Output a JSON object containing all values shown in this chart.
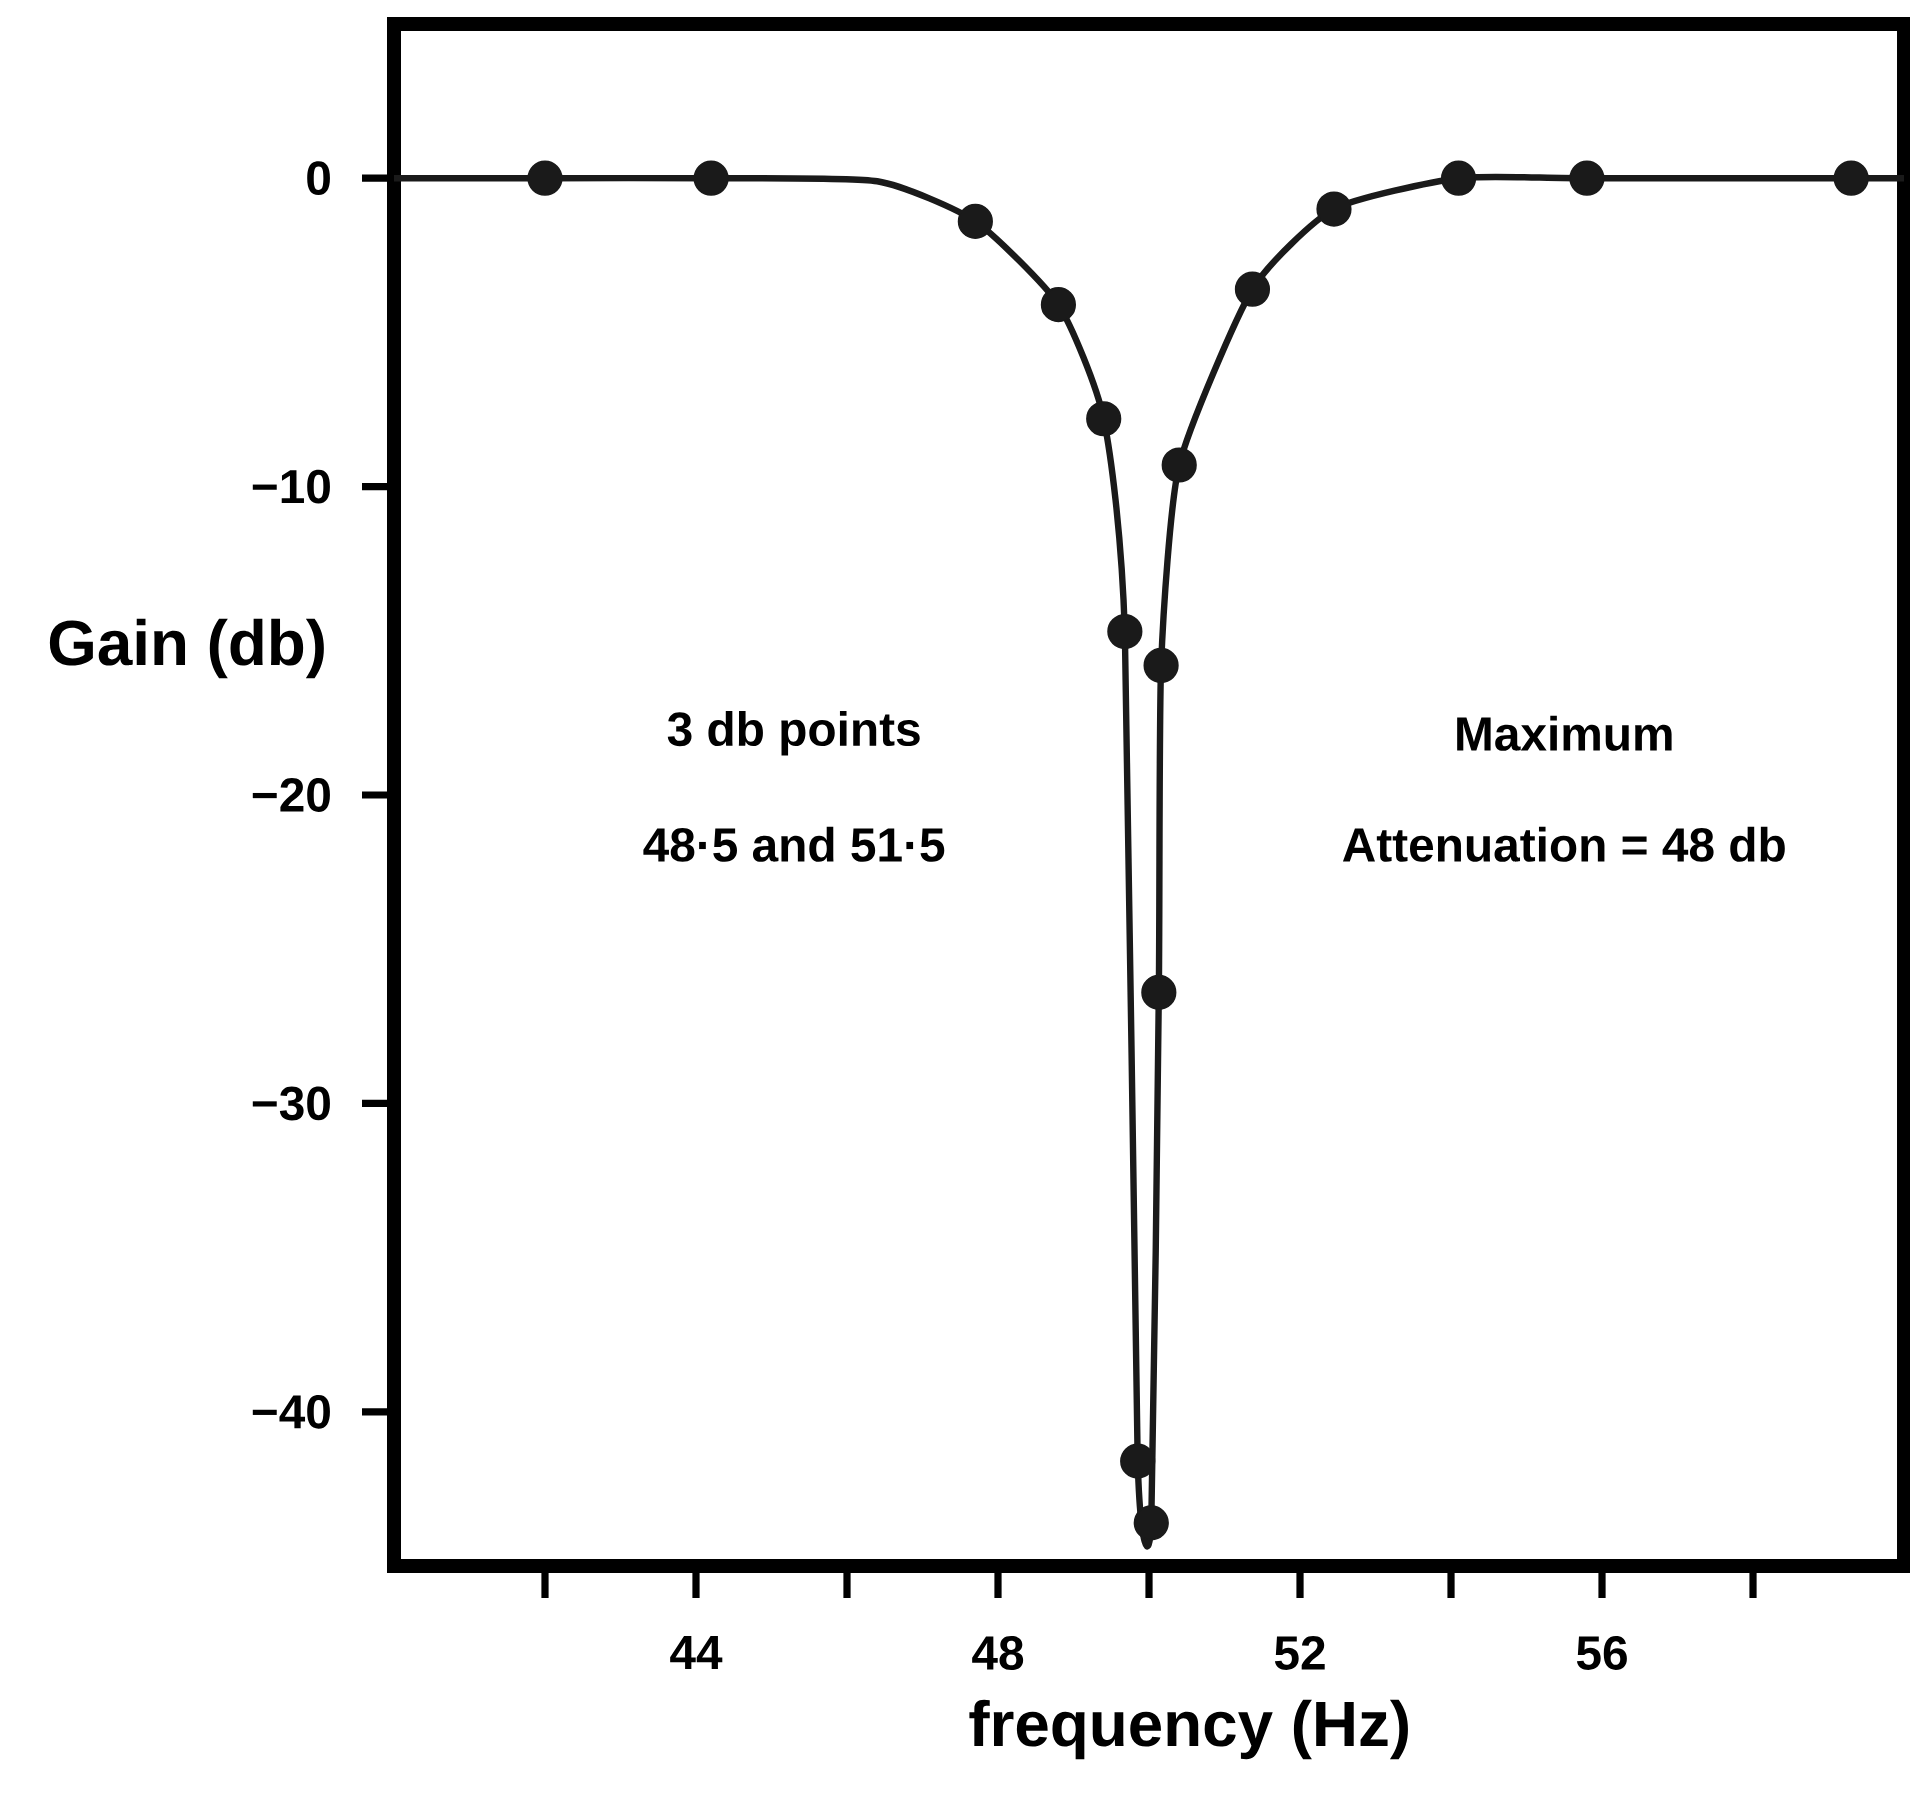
{
  "chart_data": {
    "type": "scatter",
    "xlabel": "frequency (Hz)",
    "ylabel": "Gain (db)",
    "xlim": [
      40,
      60
    ],
    "ylim": [
      -45,
      5
    ],
    "xticks": [
      {
        "value": 42,
        "label": null
      },
      44,
      {
        "value": 46,
        "label": null
      },
      48,
      {
        "value": 50,
        "label": null
      },
      52,
      {
        "value": 54,
        "label": null
      },
      56,
      {
        "value": 58,
        "label": null
      }
    ],
    "yticks": [
      0,
      {
        "value": -10,
        "label": "−10"
      },
      {
        "value": -20,
        "label": "−20"
      },
      {
        "value": -30,
        "label": "−30"
      },
      {
        "value": -40,
        "label": "−40"
      }
    ],
    "grid": false,
    "annotations": [
      "3 db points",
      "48·5 and 51·5",
      "Maximum",
      "Attenuation = 48 db"
    ],
    "series": [
      {
        "marker": "circle",
        "color": "#1a1a1a",
        "x": [
          42,
          44.2,
          47.7,
          48.8,
          49.4,
          49.68,
          49.85,
          50.03,
          50.13,
          50.16,
          50.4,
          51.37,
          52.45,
          54.1,
          55.8,
          59.3
        ],
        "values": [
          0,
          0,
          -1.4,
          -4.1,
          -7.8,
          -14.7,
          -41.6,
          -43.6,
          -26.4,
          -15.8,
          -9.3,
          -3.6,
          -1.0,
          0,
          0,
          0
        ]
      },
      {
        "type": "line",
        "marker": "none",
        "color": "#1a1a1a",
        "x": [
          40,
          42,
          44.2,
          46.4,
          47.7,
          48.8,
          49.4,
          49.68,
          49.85,
          50.03,
          50.13,
          50.16,
          50.4,
          51.37,
          52.45,
          54.1,
          55.8,
          60
        ],
        "values": [
          0,
          0,
          0,
          -0.1,
          -1.4,
          -4.1,
          -7.8,
          -14.7,
          -41.6,
          -43.6,
          -26.4,
          -15.8,
          -9.3,
          -3.6,
          -1.0,
          0,
          0,
          0
        ]
      }
    ]
  }
}
